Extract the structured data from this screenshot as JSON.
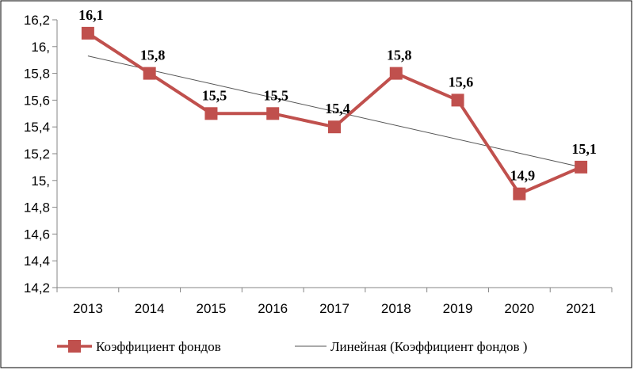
{
  "chart_data": {
    "type": "line",
    "categories": [
      "2013",
      "2014",
      "2015",
      "2016",
      "2017",
      "2018",
      "2019",
      "2020",
      "2021"
    ],
    "series": [
      {
        "name": "Коэффициент фондов",
        "values": [
          16.1,
          15.8,
          15.5,
          15.5,
          15.4,
          15.8,
          15.6,
          14.9,
          15.1
        ],
        "data_labels": [
          "16,1",
          "15,8",
          "15,5",
          "15,5",
          "15,4",
          "15,8",
          "15,6",
          "14,9",
          "15,1"
        ],
        "color": "#c0504d"
      }
    ],
    "trendline": {
      "name": "Линейная (Коэффициент фондов )",
      "type": "linear",
      "start": 15.93,
      "end": 15.1,
      "color": "#555555"
    },
    "y_ticks": [
      14.2,
      14.4,
      14.6,
      14.8,
      15.0,
      15.2,
      15.4,
      15.6,
      15.8,
      16.0,
      16.2
    ],
    "y_tick_labels": [
      "14,2",
      "14,4",
      "14,6",
      "14,8",
      "15,",
      "15,2",
      "15,4",
      "15,6",
      "15,8",
      "16,",
      "16,2"
    ],
    "ylim": [
      14.2,
      16.2
    ],
    "grid": false,
    "legend_position": "bottom",
    "title": "",
    "xlabel": "",
    "ylabel": ""
  }
}
